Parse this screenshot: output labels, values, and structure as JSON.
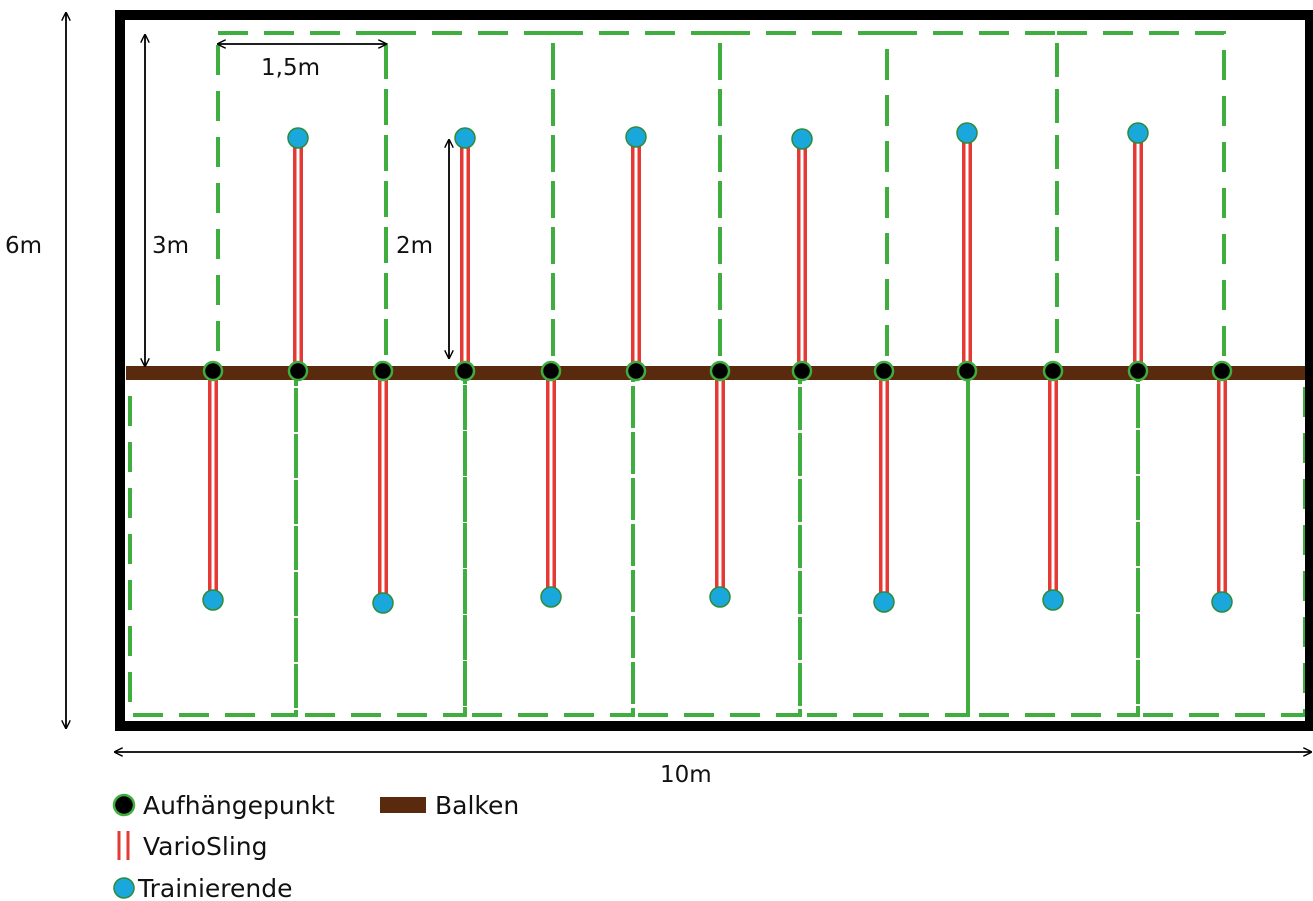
{
  "dimensions": {
    "height_label": "6m",
    "width_label": "10m",
    "section_width_label": "1,5m",
    "half_depth_label": "3m",
    "sling_length_label": "2m"
  },
  "legend": {
    "anchor": "Aufhängepunkt",
    "beam": "Balken",
    "sling": "VarioSling",
    "trainee": "Trainierende"
  },
  "layout_info": {
    "anchor_count": 13,
    "sling_count": 13,
    "slings_up": 6,
    "slings_down": 7,
    "zones_top": 6,
    "zones_bottom": 7
  },
  "colors": {
    "frame": "#000000",
    "zone_border": "#3fae3f",
    "beam": "#5a2a0e",
    "sling": "#e53935",
    "anchor": "#000000",
    "anchor_ring": "#3fae3f",
    "trainee": "#1aa7dc",
    "trainee_ring": "#2e8b3a"
  }
}
